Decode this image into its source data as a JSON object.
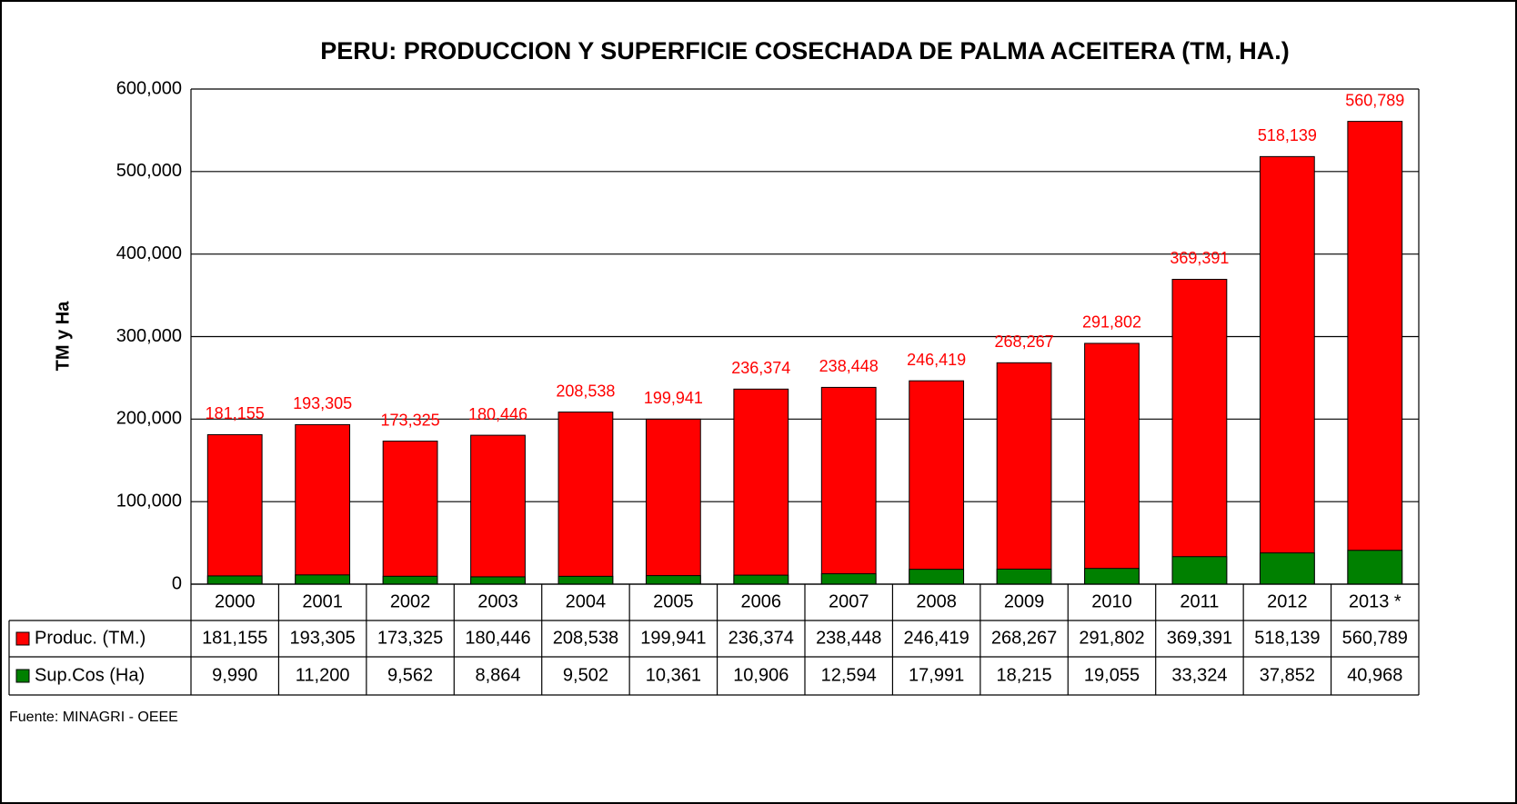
{
  "chart_data": {
    "type": "bar",
    "title": "PERU: PRODUCCION Y SUPERFICIE COSECHADA DE PALMA ACEITERA (TM, HA.)",
    "y_label": "TM y Ha",
    "source": "Fuente: MINAGRI - OEEE",
    "categories": [
      "2000",
      "2001",
      "2002",
      "2003",
      "2004",
      "2005",
      "2006",
      "2007",
      "2008",
      "2009",
      "2010",
      "2011",
      "2012",
      "2013 *"
    ],
    "series": [
      {
        "name": "Produc. (TM.)",
        "color": "#ff0000",
        "values": [
          181155,
          193305,
          173325,
          180446,
          208538,
          199941,
          236374,
          238448,
          246419,
          268267,
          291802,
          369391,
          518139,
          560789
        ],
        "value_labels": [
          "181,155",
          "193,305",
          "173,325",
          "180,446",
          "208,538",
          "199,941",
          "236,374",
          "238,448",
          "246,419",
          "268,267",
          "291,802",
          "369,391",
          "518,139",
          "560,789"
        ]
      },
      {
        "name": "Sup.Cos (Ha)",
        "color": "#008000",
        "values": [
          9990,
          11200,
          9562,
          8864,
          9502,
          10361,
          10906,
          12594,
          17991,
          18215,
          19055,
          33324,
          37852,
          40968
        ],
        "value_labels": [
          "9,990",
          "11,200",
          "9,562",
          "8,864",
          "9,502",
          "10,361",
          "10,906",
          "12,594",
          "17,991",
          "18,215",
          "19,055",
          "33,324",
          "37,852",
          "40,968"
        ]
      }
    ],
    "ylim": [
      0,
      600000
    ],
    "yticks": [
      0,
      {
        "value": 100000,
        "label": "100,000"
      },
      {
        "value": 200000,
        "label": "200,000"
      },
      {
        "value": 300000,
        "label": "300,000"
      },
      {
        "value": 400000,
        "label": "400,000"
      },
      {
        "value": 500000,
        "label": "500,000"
      },
      {
        "value": 600000,
        "label": "600,000"
      }
    ],
    "grid": true
  }
}
